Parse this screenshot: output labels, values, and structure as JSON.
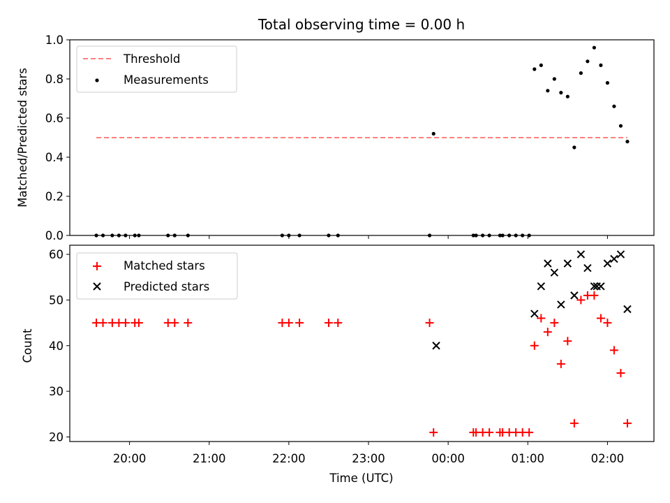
{
  "title": "Total observing time = 0.00 h",
  "colors": {
    "threshold": "#ff7f7f",
    "measurement": "#000000",
    "matched": "#ff0000",
    "predicted": "#000000"
  },
  "chart_data": [
    {
      "type": "scatter",
      "ylabel": "Matched/Predicted stars",
      "ylim": [
        0,
        1.0
      ],
      "yticks": [
        "0.0",
        "0.2",
        "0.4",
        "0.6",
        "0.8",
        "1.0"
      ],
      "xlim": [
        "19:15",
        "02:35"
      ],
      "grid": false,
      "legend": {
        "placement": "upper-left",
        "entries": [
          "Threshold",
          "Measurements"
        ]
      },
      "series": [
        {
          "name": "Threshold",
          "kind": "dashed-line",
          "x": [
            "19:35",
            "02:15"
          ],
          "y": [
            0.5,
            0.5
          ]
        },
        {
          "name": "Measurements",
          "kind": "points",
          "x": [
            "19:35",
            "19:40",
            "19:47",
            "19:52",
            "19:57",
            "20:04",
            "20:07",
            "20:29",
            "20:34",
            "20:44",
            "21:55",
            "22:00",
            "22:08",
            "22:30",
            "22:37",
            "23:46",
            "23:49",
            "00:19",
            "00:21",
            "00:26",
            "00:31",
            "00:39",
            "00:41",
            "00:46",
            "00:51",
            "00:56",
            "01:01",
            "01:05",
            "01:10",
            "01:15",
            "01:20",
            "01:25",
            "01:30",
            "01:35",
            "01:40",
            "01:45",
            "01:50",
            "01:55",
            "02:00",
            "02:05",
            "02:10",
            "02:15"
          ],
          "y": [
            0,
            0,
            0,
            0,
            0,
            0,
            0,
            0,
            0,
            0,
            0,
            0,
            0,
            0,
            0,
            0,
            0.52,
            0,
            0,
            0,
            0,
            0,
            0,
            0,
            0,
            0,
            0,
            0.85,
            0.87,
            0.74,
            0.8,
            0.73,
            0.71,
            0.45,
            0.83,
            0.89,
            0.96,
            0.87,
            0.78,
            0.66,
            0.56,
            0.48
          ]
        }
      ]
    },
    {
      "type": "scatter",
      "ylabel": "Count",
      "xlabel": "Time (UTC)",
      "ylim": [
        19,
        62
      ],
      "yticks": [
        "20",
        "30",
        "40",
        "50",
        "60"
      ],
      "xticks": [
        "20:00",
        "21:00",
        "22:00",
        "23:00",
        "00:00",
        "01:00",
        "02:00"
      ],
      "xlim": [
        "19:15",
        "02:35"
      ],
      "grid": false,
      "legend": {
        "placement": "upper-left",
        "entries": [
          "Matched stars",
          "Predicted stars"
        ]
      },
      "series": [
        {
          "name": "Matched stars",
          "marker": "+",
          "x": [
            "19:35",
            "19:40",
            "19:47",
            "19:52",
            "19:57",
            "20:04",
            "20:07",
            "20:29",
            "20:34",
            "20:44",
            "21:55",
            "22:00",
            "22:08",
            "22:30",
            "22:37",
            "23:46",
            "23:49",
            "00:19",
            "00:21",
            "00:26",
            "00:31",
            "00:39",
            "00:41",
            "00:46",
            "00:51",
            "00:56",
            "01:01",
            "01:05",
            "01:10",
            "01:15",
            "01:20",
            "01:25",
            "01:30",
            "01:35",
            "01:40",
            "01:45",
            "01:50",
            "01:55",
            "02:00",
            "02:05",
            "02:10",
            "02:15"
          ],
          "y": [
            45,
            45,
            45,
            45,
            45,
            45,
            45,
            45,
            45,
            45,
            45,
            45,
            45,
            45,
            45,
            45,
            21,
            21,
            21,
            21,
            21,
            21,
            21,
            21,
            21,
            21,
            21,
            40,
            46,
            43,
            45,
            36,
            41,
            23,
            50,
            51,
            51,
            46,
            45,
            39,
            34,
            23
          ]
        },
        {
          "name": "Predicted stars",
          "marker": "x",
          "x": [
            "23:51",
            "01:05",
            "01:10",
            "01:15",
            "01:20",
            "01:25",
            "01:30",
            "01:35",
            "01:40",
            "01:45",
            "01:50",
            "01:52",
            "01:55",
            "02:00",
            "02:05",
            "02:10",
            "02:15"
          ],
          "y": [
            40,
            47,
            53,
            58,
            56,
            49,
            58,
            51,
            60,
            57,
            53,
            53,
            53,
            58,
            59,
            60,
            48
          ]
        }
      ]
    }
  ]
}
